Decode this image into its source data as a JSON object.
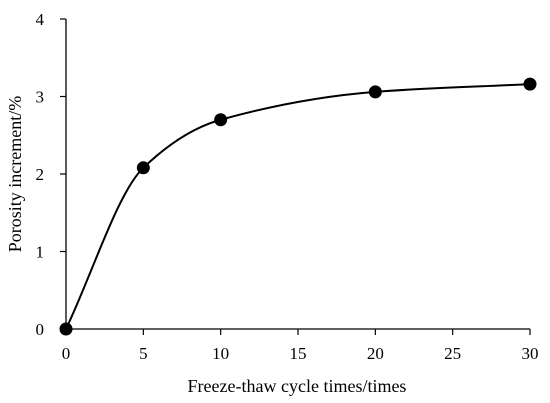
{
  "chart_data": {
    "type": "line",
    "title": "",
    "xlabel": "Freeze-thaw cycle times/times",
    "ylabel": "Porosity increment/%",
    "xlim": [
      0,
      30
    ],
    "ylim": [
      0,
      4
    ],
    "xticks": [
      "0",
      "5",
      "10",
      "15",
      "20",
      "25",
      "30"
    ],
    "yticks": [
      "0",
      "1",
      "2",
      "3",
      "4"
    ],
    "grid": false,
    "legend": "none",
    "line_style": "smoothed",
    "marker": "filled-circle",
    "color": "#000000",
    "series": [
      {
        "x": [
          0,
          5,
          10,
          20,
          30
        ],
        "y": [
          0,
          2.08,
          2.7,
          3.06,
          3.16
        ]
      }
    ]
  }
}
